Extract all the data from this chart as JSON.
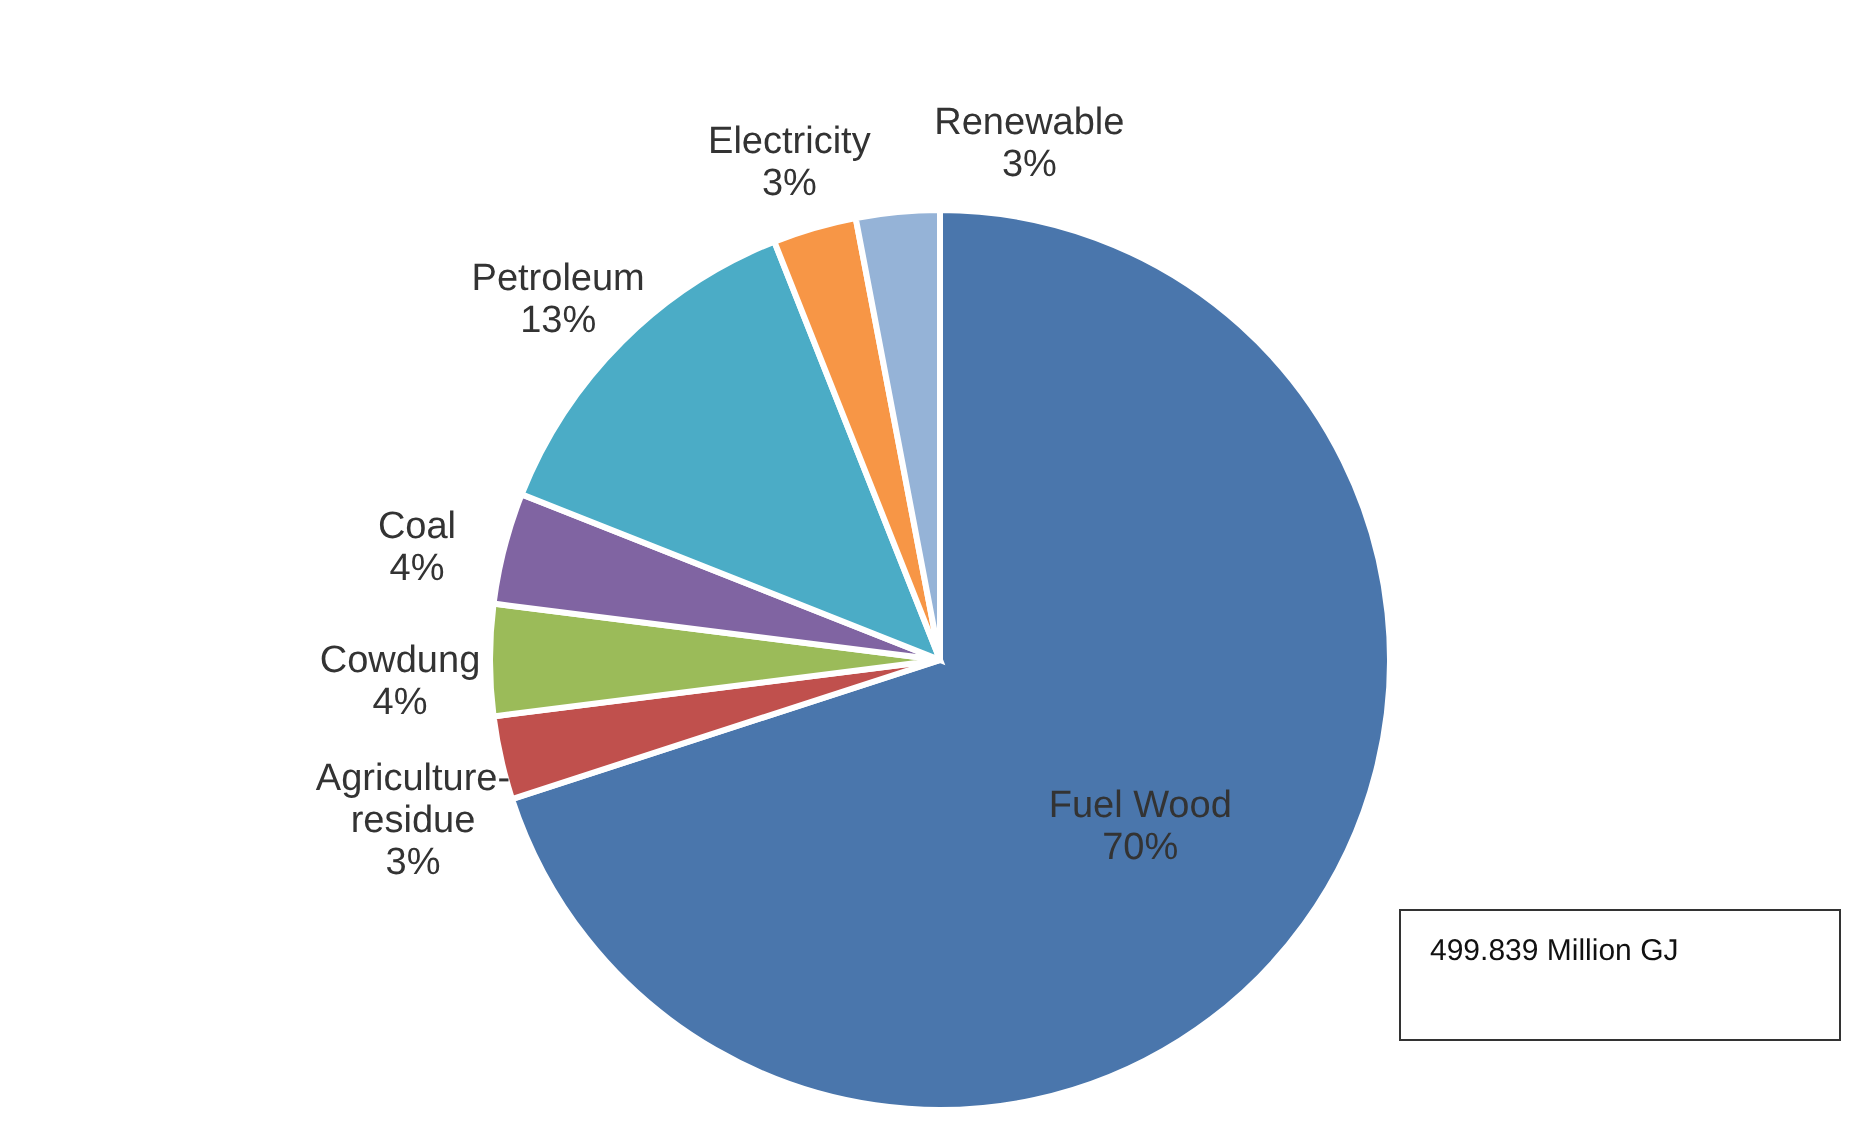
{
  "chart_data": {
    "type": "pie",
    "categories": [
      "Fuel Wood",
      "Agriculture-residue",
      "Cowdung",
      "Coal",
      "Petroleum",
      "Electricity",
      "Renewable"
    ],
    "values": [
      70,
      3,
      4,
      4,
      13,
      3,
      3
    ],
    "value_labels": [
      "70%",
      "3%",
      "4%",
      "4%",
      "13%",
      "3%",
      "3%"
    ],
    "colors": [
      "#4a76ac",
      "#c0504d",
      "#9bbb59",
      "#8064a2",
      "#4bacc6",
      "#f79646",
      "#95b3d7"
    ],
    "annotations": [
      "499.839 Million GJ"
    ]
  }
}
